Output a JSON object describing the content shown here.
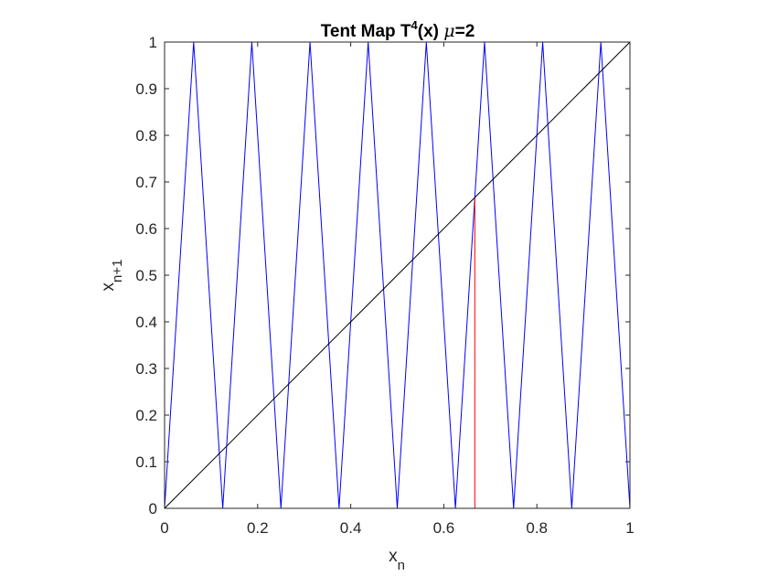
{
  "chart_data": {
    "type": "line",
    "title": {
      "main": "Tent Map T",
      "superscript": "4",
      "after_sup": "(x) ",
      "mu": "μ",
      "suffix": "=2"
    },
    "xlabel": {
      "base": "x",
      "sub": "n"
    },
    "ylabel": {
      "base": "x",
      "sub": "n+1"
    },
    "xlim": [
      0,
      1
    ],
    "ylim": [
      0,
      1
    ],
    "xticks": [
      0,
      0.2,
      0.4,
      0.6,
      0.8,
      1
    ],
    "xtick_labels": [
      "0",
      "0.2",
      "0.4",
      "0.6",
      "0.8",
      "1"
    ],
    "yticks": [
      0,
      0.1,
      0.2,
      0.3,
      0.4,
      0.5,
      0.6,
      0.7,
      0.8,
      0.9,
      1
    ],
    "ytick_labels": [
      "0",
      "0.1",
      "0.2",
      "0.3",
      "0.4",
      "0.5",
      "0.6",
      "0.7",
      "0.8",
      "0.9",
      "1"
    ],
    "grid": false,
    "box": true,
    "series": [
      {
        "color": "#0000ff",
        "x": [
          0,
          0.0625,
          0.125,
          0.1875,
          0.25,
          0.3125,
          0.375,
          0.4375,
          0.5,
          0.5625,
          0.625,
          0.6875,
          0.75,
          0.8125,
          0.875,
          0.9375,
          1
        ],
        "y": [
          0,
          1,
          0,
          1,
          0,
          1,
          0,
          1,
          0,
          1,
          0,
          1,
          0,
          1,
          0,
          1,
          0
        ]
      },
      {
        "color": "#000000",
        "x": [
          0,
          1
        ],
        "y": [
          0,
          1
        ]
      },
      {
        "color": "#ff0000",
        "x": [
          0.6667,
          0.6667
        ],
        "y": [
          0,
          0.6667
        ]
      }
    ]
  }
}
